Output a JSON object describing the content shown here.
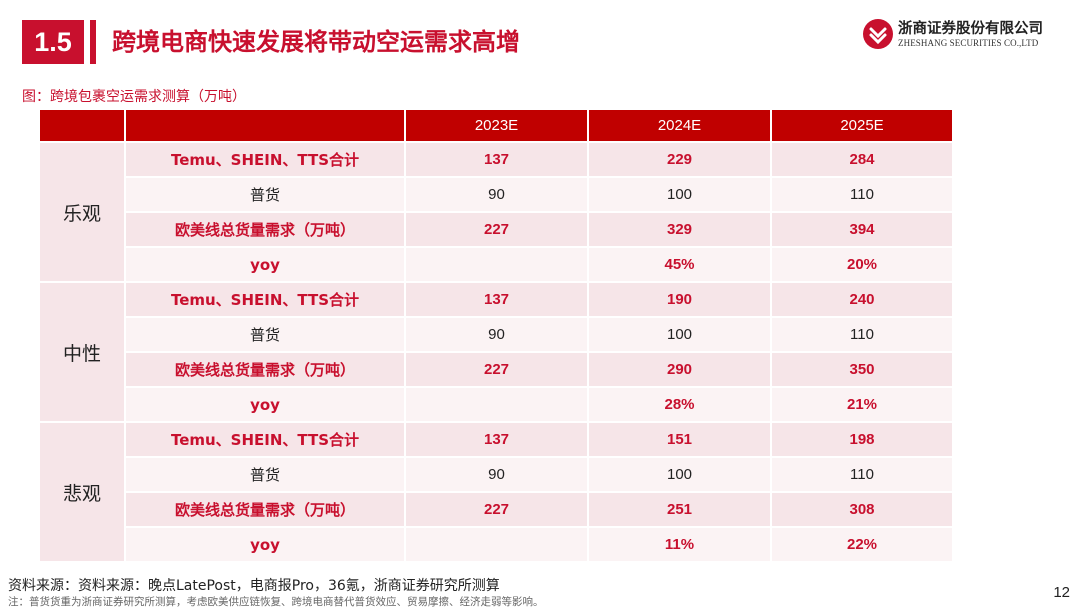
{
  "header": {
    "section_number": "1.5",
    "title": "跨境电商快速发展将带动空运需求高增"
  },
  "logo": {
    "name_cn": "浙商证券股份有限公司",
    "name_en": "ZHESHANG SECURITIES CO.,LTD",
    "brand_color": "#c8102e"
  },
  "figure": {
    "caption": "图：跨境包裹空运需求测算（万吨）"
  },
  "table": {
    "columns": [
      "",
      "",
      "2023E",
      "2024E",
      "2025E"
    ],
    "groups": [
      {
        "scenario": "乐观",
        "rows": [
          {
            "item": "Temu、SHEIN、TTS合计",
            "y2023": "137",
            "y2024": "229",
            "y2025": "284"
          },
          {
            "item": "普货",
            "y2023": "90",
            "y2024": "100",
            "y2025": "110"
          },
          {
            "item": "欧美线总货量需求（万吨）",
            "y2023": "227",
            "y2024": "329",
            "y2025": "394"
          },
          {
            "item": "yoy",
            "y2023": "",
            "y2024": "45%",
            "y2025": "20%"
          }
        ]
      },
      {
        "scenario": "中性",
        "rows": [
          {
            "item": "Temu、SHEIN、TTS合计",
            "y2023": "137",
            "y2024": "190",
            "y2025": "240"
          },
          {
            "item": "普货",
            "y2023": "90",
            "y2024": "100",
            "y2025": "110"
          },
          {
            "item": "欧美线总货量需求（万吨）",
            "y2023": "227",
            "y2024": "290",
            "y2025": "350"
          },
          {
            "item": "yoy",
            "y2023": "",
            "y2024": "28%",
            "y2025": "21%"
          }
        ]
      },
      {
        "scenario": "悲观",
        "rows": [
          {
            "item": "Temu、SHEIN、TTS合计",
            "y2023": "137",
            "y2024": "151",
            "y2025": "198"
          },
          {
            "item": "普货",
            "y2023": "90",
            "y2024": "100",
            "y2025": "110"
          },
          {
            "item": "欧美线总货量需求（万吨）",
            "y2023": "227",
            "y2024": "251",
            "y2025": "308"
          },
          {
            "item": "yoy",
            "y2023": "",
            "y2024": "11%",
            "y2025": "22%"
          }
        ]
      }
    ]
  },
  "footer": {
    "source": "资料来源：资料来源：晚点LatePost，电商报Pro，36氪，浙商证券研究所测算",
    "note": "注：普货货重为浙商证券研究所测算，考虑欧美供应链恢复、跨境电商替代普货效应、贸易摩擦、经济走弱等影响。",
    "page_number": "12"
  }
}
